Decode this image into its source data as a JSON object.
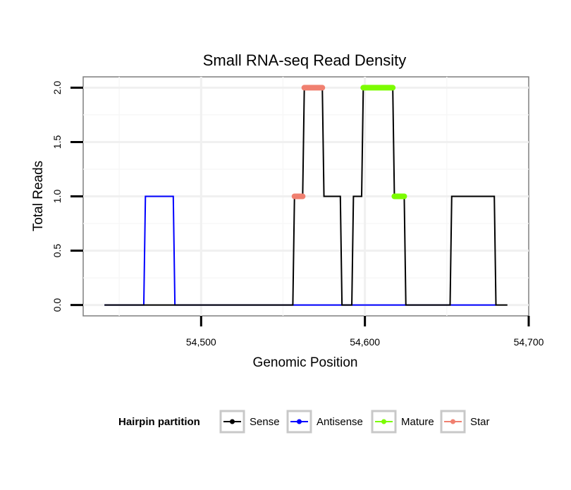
{
  "chart_data": {
    "type": "line",
    "title": "Small RNA-seq Read Density",
    "xlabel": "Genomic Position",
    "ylabel": "Total Reads",
    "xlim": [
      54428,
      54700
    ],
    "ylim": [
      -0.1,
      2.1
    ],
    "x_ticks": [
      54500,
      54600,
      54700
    ],
    "x_tick_labels": [
      "54,500",
      "54,600",
      "54,700"
    ],
    "y_ticks": [
      0,
      0.5,
      1,
      1.5,
      2
    ],
    "y_tick_labels": [
      "0.0",
      "0.5",
      "1.0",
      "1.5",
      "2.0"
    ],
    "grid": true,
    "legend": {
      "title": "Hairpin partition",
      "placement": "bottom",
      "entries": [
        "Sense",
        "Antisense",
        "Mature",
        "Star"
      ]
    },
    "series": [
      {
        "name": "Sense",
        "color": "#000000",
        "style": "line",
        "x": [
          54441,
          54556,
          54557,
          54562,
          54563,
          54574,
          54575,
          54585,
          54586,
          54592,
          54593,
          54598,
          54599,
          54617,
          54618,
          54624,
          54625,
          54652,
          54653,
          54679,
          54680,
          54687
        ],
        "y": [
          0,
          0,
          1,
          1,
          2,
          2,
          1,
          1,
          0,
          0,
          1,
          1,
          2,
          2,
          1,
          1,
          0,
          0,
          1,
          1,
          0,
          0
        ]
      },
      {
        "name": "Antisense",
        "color": "#0000ff",
        "style": "line",
        "x": [
          54441,
          54465,
          54466,
          54483,
          54484,
          54680
        ],
        "y": [
          0,
          0,
          1,
          1,
          0,
          0
        ]
      },
      {
        "name": "Mature",
        "color": "#7cfc00",
        "style": "thick",
        "segments": [
          {
            "x": [
              54599,
              54617
            ],
            "y": [
              2,
              2
            ]
          },
          {
            "x": [
              54618,
              54624
            ],
            "y": [
              1,
              1
            ]
          }
        ]
      },
      {
        "name": "Star",
        "color": "#f08070",
        "style": "thick",
        "segments": [
          {
            "x": [
              54557,
              54562
            ],
            "y": [
              1,
              1
            ]
          },
          {
            "x": [
              54563,
              54574
            ],
            "y": [
              2,
              2
            ]
          }
        ]
      }
    ]
  }
}
